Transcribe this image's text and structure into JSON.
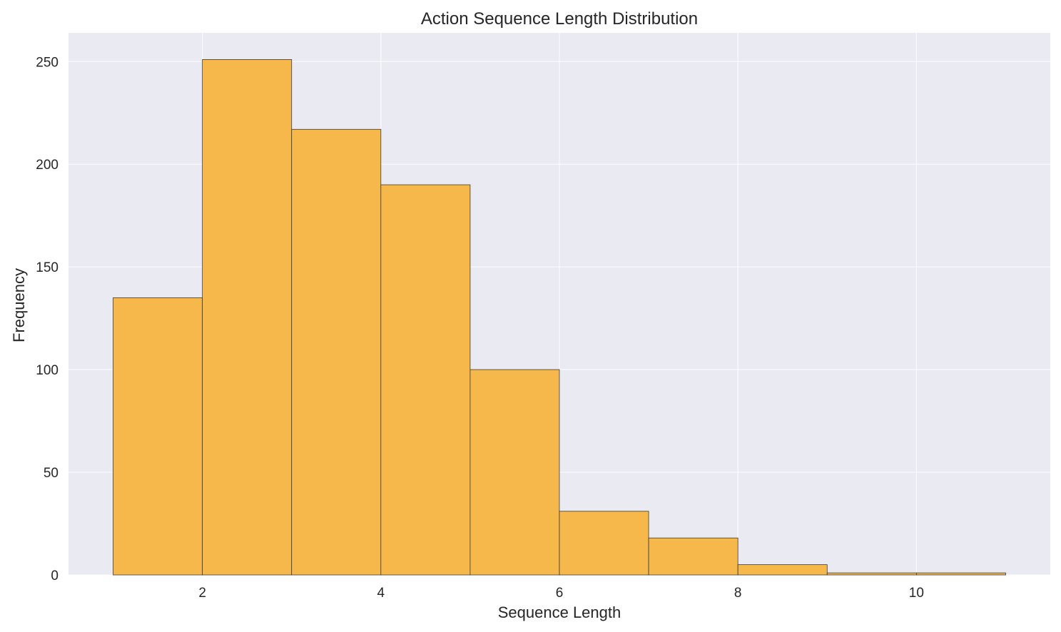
{
  "chart_data": {
    "type": "bar",
    "title": "Action Sequence Length Distribution",
    "xlabel": "Sequence Length",
    "ylabel": "Frequency",
    "bin_edges": [
      1,
      2,
      3,
      4,
      5,
      6,
      7,
      8,
      9,
      10,
      11
    ],
    "values": [
      135,
      251,
      217,
      190,
      100,
      31,
      18,
      5,
      1,
      1
    ],
    "xlim": [
      0.5,
      11.5
    ],
    "ylim": [
      0,
      264
    ],
    "xticks": [
      2,
      4,
      6,
      8,
      10
    ],
    "yticks": [
      0,
      50,
      100,
      150,
      200,
      250
    ],
    "grid": true,
    "colors": {
      "bar_fill": "#f7b84b",
      "bar_edge": "#3a3a3a",
      "plot_background": "#eaeaf2"
    }
  }
}
